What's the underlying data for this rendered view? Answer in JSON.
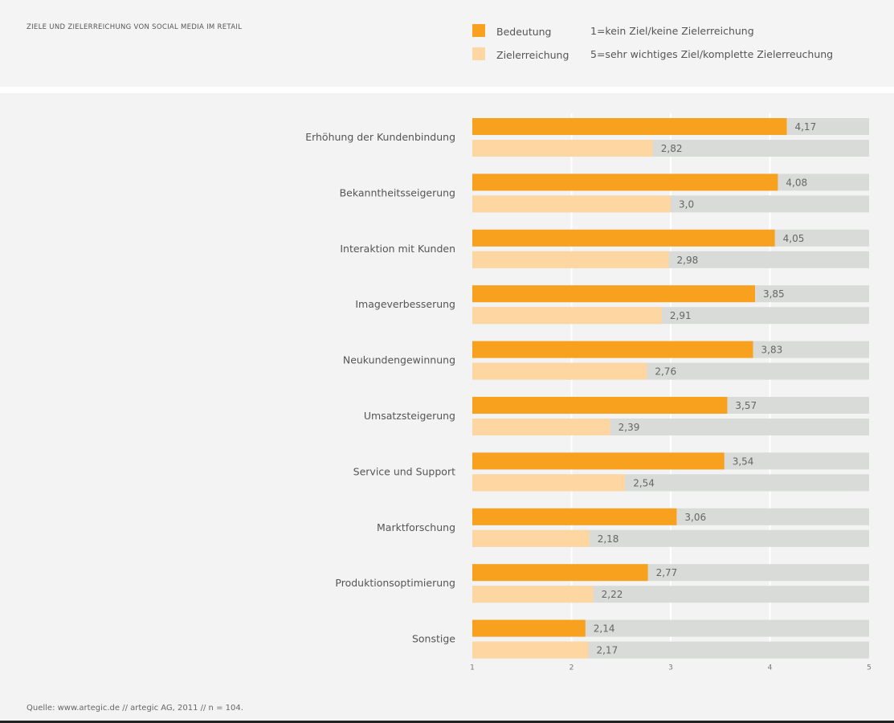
{
  "chart_data": {
    "type": "bar",
    "orientation": "horizontal",
    "title": "ZIELE UND ZIELERREICHUNG VON SOCIAL MEDIA IM RETAIL",
    "categories": [
      "Erhöhung der Kundenbindung",
      "Bekanntheitsseigerung",
      "Interaktion mit Kunden",
      "Imageverbesserung",
      "Neukundengewinnung",
      "Umsatzsteigerung",
      "Service und Support",
      "Marktforschung",
      "Produktionsoptimierung",
      "Sonstige"
    ],
    "series": [
      {
        "name": "Bedeutung",
        "color": "#f7a11f",
        "values": [
          4.17,
          4.08,
          4.05,
          3.85,
          3.83,
          3.57,
          3.54,
          3.06,
          2.77,
          2.14
        ],
        "labels": [
          "4,17",
          "4,08",
          "4,05",
          "3,85",
          "3,83",
          "3,57",
          "3,54",
          "3,06",
          "2,77",
          "2,14"
        ]
      },
      {
        "name": "Zielerreichung",
        "color": "#fdd6a2",
        "values": [
          2.82,
          3.0,
          2.98,
          2.91,
          2.76,
          2.39,
          2.54,
          2.18,
          2.22,
          2.17
        ],
        "labels": [
          "2,82",
          "3,0",
          "2,98",
          "2,91",
          "2,76",
          "2,39",
          "2,54",
          "2,18",
          "2,22",
          "2,17"
        ]
      }
    ],
    "xlim": [
      1,
      5
    ],
    "xticks": [
      "1",
      "2",
      "3",
      "4",
      "5"
    ],
    "track_color": "#d8dbd8",
    "grid": true,
    "legend_position": "top-right",
    "scale_notes": [
      "1=kein Ziel/keine Zielerreichung",
      "5=sehr wichtiges Ziel/komplette Zielerreuchung"
    ]
  },
  "source": "Quelle: www.artegic.de // artegic AG, 2011 // n = 104."
}
